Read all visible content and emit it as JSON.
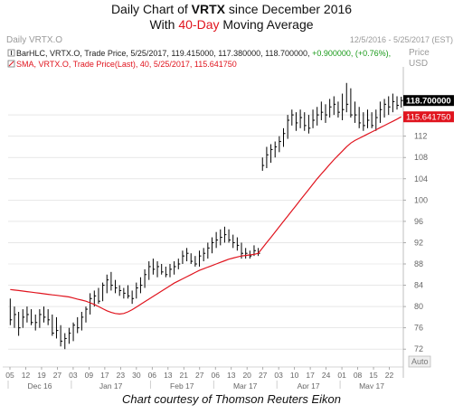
{
  "header": {
    "title_prefix": "Daily Chart of ",
    "title_ticker": "VRTX",
    "title_suffix": " since December 2016",
    "subtitle_prefix": "With ",
    "subtitle_highlight": "40-Day",
    "subtitle_suffix": " Moving Average"
  },
  "panel": {
    "name": "Daily VRTX.O",
    "date_range": "12/5/2016 - 5/25/2017 (EST)",
    "axis_title_1": "Price",
    "axis_title_2": "USD",
    "auto_label": "Auto"
  },
  "legend": {
    "bar_text": "BarHLC, VRTX.O, Trade Price, 5/25/2017, 119.415000, 117.380000, 118.700000,",
    "bar_change": "+0.900000, (+0.76%),",
    "sma_text": "SMA, VRTX.O, Trade Price(Last), 40, 5/25/2017, 115.641750"
  },
  "price_tags": {
    "last": "118.700000",
    "sma": "115.641750"
  },
  "caption": "Chart courtesy of Thomson Reuters Eikon",
  "colors": {
    "sma_line": "#e0141e",
    "bars": "#000000",
    "grid": "#d9d9d9",
    "change": "#1a9a1a",
    "panel_text": "#9a9a9a"
  },
  "chart_data": {
    "type": "bar",
    "subtype": "ohlc-hlc",
    "ylim": [
      70,
      124
    ],
    "yticks": [
      72,
      76,
      80,
      84,
      88,
      92,
      96,
      100,
      104,
      108,
      112,
      116
    ],
    "x_day_labels": [
      "05",
      "12",
      "19",
      "27",
      "03",
      "09",
      "17",
      "23",
      "30",
      "06",
      "13",
      "21",
      "27",
      "06",
      "13",
      "20",
      "27",
      "03",
      "10",
      "17",
      "24",
      "01",
      "08",
      "15",
      "22"
    ],
    "x_month_labels": [
      "Dec 16",
      "Jan 17",
      "Feb 17",
      "Mar 17",
      "Apr 17",
      "May 17"
    ],
    "series": [
      {
        "name": "BarHLC",
        "style": "hlc",
        "bars": [
          [
            81.5,
            76.5,
            77.5
          ],
          [
            80.0,
            76.0,
            78.5
          ],
          [
            79.0,
            74.5,
            76.0
          ],
          [
            79.5,
            76.0,
            78.0
          ],
          [
            80.0,
            77.0,
            78.5
          ],
          [
            79.5,
            76.5,
            77.0
          ],
          [
            78.5,
            75.5,
            77.0
          ],
          [
            79.5,
            76.0,
            78.5
          ],
          [
            80.0,
            77.0,
            78.0
          ],
          [
            79.5,
            76.5,
            77.5
          ],
          [
            78.5,
            74.5,
            75.0
          ],
          [
            78.0,
            74.0,
            75.5
          ],
          [
            76.5,
            72.5,
            73.5
          ],
          [
            75.0,
            72.0,
            74.0
          ],
          [
            76.0,
            73.0,
            75.0
          ],
          [
            77.0,
            73.5,
            76.5
          ],
          [
            78.0,
            75.0,
            76.0
          ],
          [
            79.0,
            75.5,
            78.0
          ],
          [
            80.0,
            77.0,
            79.5
          ],
          [
            82.5,
            78.5,
            81.5
          ],
          [
            83.0,
            80.0,
            82.0
          ],
          [
            83.5,
            80.5,
            81.0
          ],
          [
            84.5,
            81.0,
            84.0
          ],
          [
            86.0,
            82.5,
            85.0
          ],
          [
            86.5,
            83.0,
            84.0
          ],
          [
            85.0,
            82.5,
            83.5
          ],
          [
            84.0,
            82.0,
            83.0
          ],
          [
            83.5,
            81.5,
            82.5
          ],
          [
            84.0,
            81.5,
            82.0
          ],
          [
            83.0,
            80.5,
            81.5
          ],
          [
            84.5,
            81.5,
            83.5
          ],
          [
            85.5,
            82.5,
            84.0
          ],
          [
            87.0,
            83.5,
            86.0
          ],
          [
            88.5,
            85.0,
            87.5
          ],
          [
            89.0,
            86.0,
            87.0
          ],
          [
            88.5,
            85.5,
            87.5
          ],
          [
            88.0,
            86.0,
            86.5
          ],
          [
            87.5,
            85.5,
            86.0
          ],
          [
            88.0,
            85.5,
            87.0
          ],
          [
            88.5,
            86.0,
            87.5
          ],
          [
            89.0,
            87.0,
            88.0
          ],
          [
            90.5,
            88.0,
            89.5
          ],
          [
            91.0,
            88.5,
            90.0
          ],
          [
            90.0,
            88.0,
            88.5
          ],
          [
            89.5,
            87.5,
            88.0
          ],
          [
            90.5,
            87.5,
            89.5
          ],
          [
            91.0,
            88.5,
            90.0
          ],
          [
            92.0,
            89.0,
            91.0
          ],
          [
            93.0,
            90.0,
            92.0
          ],
          [
            94.0,
            91.0,
            92.5
          ],
          [
            94.5,
            91.5,
            93.0
          ],
          [
            95.0,
            92.0,
            93.5
          ],
          [
            94.5,
            92.0,
            92.5
          ],
          [
            93.5,
            91.0,
            92.0
          ],
          [
            93.0,
            90.5,
            91.5
          ],
          [
            92.0,
            89.0,
            90.0
          ],
          [
            91.0,
            89.0,
            90.0
          ],
          [
            90.5,
            89.0,
            89.5
          ],
          [
            91.5,
            89.5,
            90.5
          ],
          [
            91.0,
            89.5,
            90.0
          ],
          [
            108.0,
            105.5,
            106.5
          ],
          [
            110.0,
            106.0,
            108.5
          ],
          [
            110.5,
            107.0,
            109.5
          ],
          [
            111.0,
            108.0,
            110.0
          ],
          [
            112.0,
            109.0,
            111.0
          ],
          [
            113.5,
            110.0,
            112.5
          ],
          [
            116.0,
            111.5,
            115.0
          ],
          [
            117.0,
            114.0,
            116.0
          ],
          [
            116.5,
            113.0,
            114.5
          ],
          [
            117.0,
            113.5,
            115.5
          ],
          [
            116.5,
            113.0,
            114.0
          ],
          [
            116.0,
            112.5,
            113.5
          ],
          [
            117.0,
            113.5,
            115.0
          ],
          [
            117.5,
            114.0,
            116.0
          ],
          [
            118.5,
            115.0,
            116.5
          ],
          [
            118.0,
            114.5,
            116.0
          ],
          [
            119.0,
            115.5,
            117.5
          ],
          [
            119.5,
            116.0,
            118.0
          ],
          [
            118.5,
            115.5,
            116.5
          ],
          [
            120.0,
            115.0,
            117.0
          ],
          [
            122.0,
            116.5,
            118.0
          ],
          [
            121.0,
            115.5,
            116.0
          ],
          [
            118.5,
            114.5,
            116.0
          ],
          [
            117.5,
            113.5,
            114.5
          ],
          [
            116.5,
            113.0,
            114.0
          ],
          [
            117.0,
            113.5,
            115.0
          ],
          [
            116.5,
            113.5,
            114.0
          ],
          [
            117.0,
            113.0,
            115.5
          ],
          [
            118.5,
            114.5,
            117.0
          ],
          [
            119.0,
            115.5,
            118.0
          ],
          [
            119.5,
            116.0,
            117.5
          ],
          [
            120.0,
            116.5,
            118.5
          ],
          [
            119.5,
            117.0,
            117.8
          ],
          [
            119.415,
            117.38,
            118.7
          ]
        ]
      },
      {
        "name": "SMA",
        "style": "line",
        "values": [
          83.2,
          83.1,
          83.0,
          82.9,
          82.8,
          82.7,
          82.6,
          82.5,
          82.4,
          82.3,
          82.2,
          82.1,
          82.0,
          81.9,
          81.8,
          81.6,
          81.4,
          81.2,
          81.0,
          80.7,
          80.4,
          80.0,
          79.6,
          79.2,
          78.9,
          78.7,
          78.6,
          78.7,
          79.0,
          79.4,
          79.9,
          80.4,
          80.9,
          81.4,
          81.9,
          82.4,
          82.9,
          83.4,
          83.9,
          84.4,
          84.8,
          85.2,
          85.6,
          86.0,
          86.4,
          86.8,
          87.1,
          87.4,
          87.7,
          88.0,
          88.3,
          88.6,
          88.9,
          89.1,
          89.3,
          89.5,
          89.6,
          89.7,
          89.8,
          90.0,
          91.0,
          92.0,
          93.0,
          94.0,
          95.0,
          96.0,
          97.0,
          98.0,
          99.0,
          100.0,
          101.0,
          102.0,
          103.0,
          104.0,
          104.9,
          105.8,
          106.7,
          107.6,
          108.4,
          109.2,
          110.0,
          110.7,
          111.2,
          111.6,
          112.0,
          112.4,
          112.8,
          113.2,
          113.6,
          114.0,
          114.4,
          114.8,
          115.2,
          115.64175
        ]
      }
    ]
  }
}
